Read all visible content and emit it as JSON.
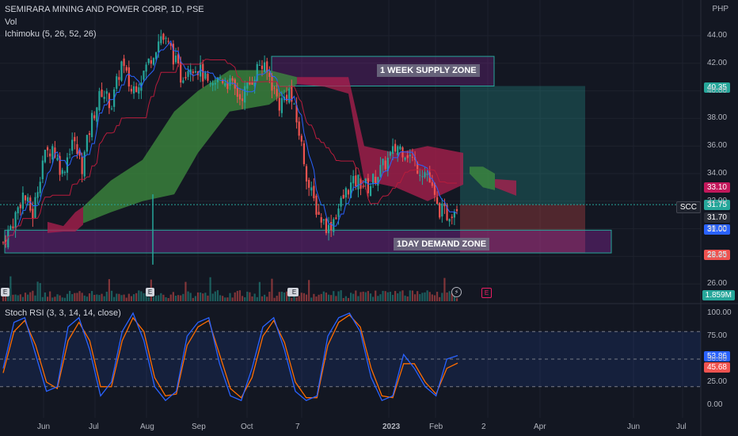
{
  "header": {
    "title": "SEMIRARA MINING AND POWER CORP, 1D, PSE",
    "vol_label": "Vol",
    "ichimoku_label": "Ichimoku (5, 26, 52, 26)",
    "rsi_label": "Stoch RSI (3, 3, 14, 14, close)",
    "currency": "PHP"
  },
  "zones": {
    "supply_label": "1 WEEK SUPPLY ZONE",
    "demand_label": "1DAY DEMAND ZONE"
  },
  "colors": {
    "background": "#131722",
    "bull": "#26a69a",
    "bear": "#ef5350",
    "cloud_bull": "#3f8f3f",
    "cloud_bear": "#b0204f",
    "tenkan": "#2962ff",
    "kijun": "#b71c3c",
    "rsi_k": "#2962ff",
    "rsi_d": "#ff6d00"
  },
  "price_tags": [
    {
      "text": "40.35",
      "color": "#26a69a"
    },
    {
      "text": "33.10",
      "color": "#c2185b"
    },
    {
      "text": "SCC",
      "color": "#1e222d"
    },
    {
      "text": "31.75",
      "color": "#26a69a"
    },
    {
      "text": "31.70",
      "color": "#2a2e39"
    },
    {
      "text": "31.00",
      "color": "#2962ff"
    },
    {
      "text": "28.25",
      "color": "#ef5350"
    },
    {
      "text": "1.859M",
      "color": "#26a69a"
    },
    {
      "text": "53.86",
      "color": "#2962ff"
    },
    {
      "text": "45.68",
      "color": "#ef5350"
    }
  ],
  "event_markers": [
    "E",
    "E",
    "E",
    "E",
    "E"
  ],
  "chart_data": {
    "type": "candlestick",
    "y_ticks": [
      "44.00",
      "42.00",
      "40.00",
      "38.00",
      "36.00",
      "34.00",
      "32.00",
      "30.00",
      "28.00",
      "26.00"
    ],
    "x_ticks": [
      "Jun",
      "Jul",
      "Aug",
      "Sep",
      "Oct",
      "7",
      "2023",
      "Feb",
      "2",
      "Apr",
      "Jun",
      "Jul"
    ],
    "price_ylim": [
      26,
      45
    ],
    "close_path": [
      29,
      30.5,
      32.5,
      31,
      35,
      36,
      34,
      36.5,
      34.5,
      38,
      40,
      39,
      42,
      40,
      41,
      42.5,
      44,
      43,
      41,
      42,
      41.5,
      40,
      41,
      40.5,
      39.5,
      40.5,
      42,
      41,
      39,
      40,
      37,
      33,
      31,
      30,
      31.5,
      33,
      33.5,
      33,
      34,
      35,
      36,
      35.5,
      34.5,
      34,
      31.5,
      31,
      31.7
    ],
    "supply_zone": [
      40.35,
      42.5
    ],
    "demand_zone": [
      28.25,
      29.9
    ],
    "position": {
      "entry": 31.75,
      "target": 40.35,
      "stop": 28.25
    },
    "rsi_ylim": [
      0,
      100
    ],
    "rsi_ticks": [
      "100.00",
      "75.00",
      "50.00",
      "25.00",
      "0.00"
    ],
    "rsi_levels": [
      80,
      20
    ],
    "rsi_k": [
      40,
      90,
      95,
      55,
      15,
      20,
      85,
      95,
      60,
      10,
      25,
      80,
      100,
      70,
      20,
      5,
      15,
      75,
      90,
      95,
      45,
      10,
      5,
      40,
      85,
      95,
      60,
      15,
      5,
      10,
      75,
      95,
      100,
      80,
      30,
      5,
      10,
      55,
      40,
      20,
      10,
      50,
      53.86
    ],
    "rsi_d": [
      35,
      80,
      92,
      65,
      25,
      18,
      70,
      90,
      70,
      20,
      20,
      70,
      95,
      80,
      30,
      10,
      12,
      65,
      85,
      92,
      55,
      18,
      8,
      30,
      75,
      92,
      68,
      25,
      8,
      8,
      65,
      90,
      98,
      85,
      40,
      10,
      8,
      45,
      45,
      25,
      12,
      40,
      45.68
    ]
  }
}
